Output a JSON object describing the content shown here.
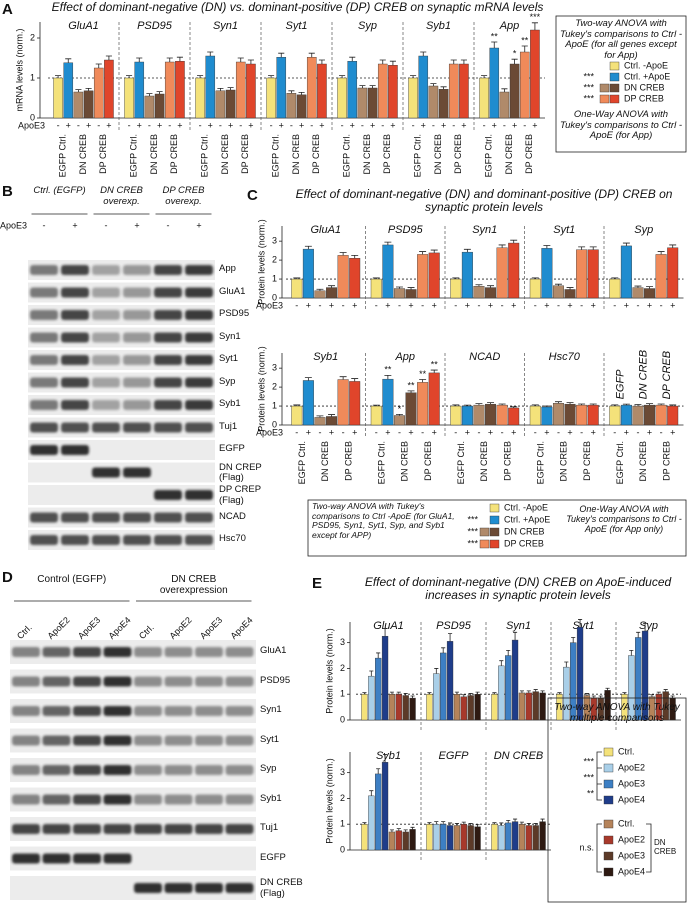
{
  "chart_data": [
    {
      "type": "bar",
      "label": "A",
      "title": "Effect of dominant-negative (DN) vs. dominant-positive (DP) CREB on synaptic mRNA levels",
      "ylabel": "mRNA levels (norm.)",
      "ylim": [
        0,
        2.4
      ],
      "yticks": [
        0,
        1,
        2
      ],
      "refline": 1,
      "sign_label": "ApoE3",
      "signs": [
        "-",
        "+"
      ],
      "pair_labels": [
        "EGFP Ctrl.",
        "DN CREB",
        "DP CREB"
      ],
      "legend": [
        {
          "label": "Ctrl. -ApoE",
          "colors": [
            "#f4e27a"
          ]
        },
        {
          "label": "Ctrl. +ApoE",
          "colors": [
            "#1f8ccf"
          ]
        },
        {
          "label": "DN CREB",
          "colors": [
            "#b08a6a",
            "#6b4a35"
          ]
        },
        {
          "label": "DP CREB",
          "colors": [
            "#f08a5a",
            "#e0452b"
          ]
        }
      ],
      "legend_stars": [
        null,
        "***",
        "***",
        "***"
      ],
      "legend_notes": [
        "Two-way ANOVA with Tukey's comparisons to Ctrl -ApoE (for all genes except for App)",
        "One-Way ANOVA with Tukey's comparisons to Ctrl -ApoE (for App)"
      ],
      "rows": [
        {
          "categories": [
            "GluA1",
            "PSD95",
            "Syn1",
            "Syt1",
            "Syp",
            "Syb1",
            "App"
          ],
          "values": [
            [
              1.0,
              1.38,
              0.65,
              0.68,
              1.25,
              1.45
            ],
            [
              1.0,
              1.4,
              0.55,
              0.6,
              1.4,
              1.42
            ],
            [
              1.0,
              1.55,
              0.68,
              0.7,
              1.4,
              1.35
            ],
            [
              1.0,
              1.52,
              0.62,
              0.58,
              1.52,
              1.35
            ],
            [
              1.0,
              1.42,
              0.75,
              0.75,
              1.35,
              1.32
            ],
            [
              1.0,
              1.55,
              0.8,
              0.72,
              1.35,
              1.35
            ],
            [
              1.0,
              1.75,
              0.65,
              1.35,
              1.65,
              2.2
            ]
          ],
          "errors": [
            [
              0.06,
              0.1,
              0.06,
              0.06,
              0.1,
              0.1
            ],
            [
              0.06,
              0.1,
              0.06,
              0.06,
              0.1,
              0.1
            ],
            [
              0.06,
              0.1,
              0.06,
              0.06,
              0.1,
              0.1
            ],
            [
              0.06,
              0.1,
              0.06,
              0.06,
              0.1,
              0.1
            ],
            [
              0.06,
              0.1,
              0.06,
              0.06,
              0.1,
              0.1
            ],
            [
              0.06,
              0.1,
              0.06,
              0.06,
              0.1,
              0.1
            ],
            [
              0.06,
              0.15,
              0.08,
              0.12,
              0.15,
              0.18
            ]
          ],
          "stars": [
            null,
            null,
            null,
            null,
            null,
            null,
            [
              null,
              "**",
              null,
              "*",
              "**",
              "***"
            ]
          ]
        }
      ]
    },
    {
      "type": "bar",
      "label": "C",
      "title": "Effect of dominant-negative (DN) and dominant-positive (DP) CREB on synaptic protein levels",
      "ylabel": "Protein levels (norm.)",
      "ylim": [
        0,
        3.8
      ],
      "yticks": [
        0,
        1,
        2,
        3
      ],
      "refline": 1,
      "sign_label": "ApoE3",
      "signs": [
        "-",
        "+"
      ],
      "pair_labels": [
        "EGFP Ctrl.",
        "DN CREB",
        "DP CREB"
      ],
      "legend": [
        {
          "label": "Ctrl. -ApoE",
          "colors": [
            "#f4e27a"
          ]
        },
        {
          "label": "Ctrl. +ApoE",
          "colors": [
            "#1f8ccf"
          ]
        },
        {
          "label": "DN CREB",
          "colors": [
            "#b08a6a",
            "#6b4a35"
          ]
        },
        {
          "label": "DP CREB",
          "colors": [
            "#f08a5a",
            "#e0452b"
          ]
        }
      ],
      "legend_stars": [
        null,
        "***",
        "***",
        "***"
      ],
      "legend_notes": [
        "Two-way ANOVA with Tukey's comparisons to Ctrl -ApoE (for GluA1, PSD95, Syn1, Syt1, Syp, and Syb1 except for APP)",
        "One-Way ANOVA with Tukey's comparisons to Ctrl -ApoE (for App only)"
      ],
      "rows": [
        {
          "categories": [
            "GluA1",
            "PSD95",
            "Syn1",
            "Syt1",
            "Syp"
          ],
          "values": [
            [
              1.0,
              2.58,
              0.38,
              0.55,
              2.25,
              2.1
            ],
            [
              1.0,
              2.8,
              0.5,
              0.45,
              2.3,
              2.38
            ],
            [
              1.0,
              2.42,
              0.62,
              0.55,
              2.65,
              2.9
            ],
            [
              1.0,
              2.62,
              0.65,
              0.45,
              2.55,
              2.55
            ],
            [
              1.0,
              2.75,
              0.55,
              0.5,
              2.3,
              2.65
            ]
          ],
          "errors": [
            [
              0.06,
              0.15,
              0.08,
              0.1,
              0.15,
              0.15
            ],
            [
              0.06,
              0.15,
              0.08,
              0.1,
              0.15,
              0.15
            ],
            [
              0.06,
              0.15,
              0.08,
              0.1,
              0.15,
              0.15
            ],
            [
              0.06,
              0.15,
              0.08,
              0.1,
              0.15,
              0.15
            ],
            [
              0.06,
              0.15,
              0.08,
              0.1,
              0.15,
              0.15
            ]
          ]
        },
        {
          "categories": [
            "Syb1",
            "App",
            "NCAD",
            "Hsc70",
            null
          ],
          "sub_labels": [
            "EGFP",
            "DN CREB",
            "DP CREB"
          ],
          "values": [
            [
              1.0,
              2.35,
              0.4,
              0.45,
              2.4,
              2.3
            ],
            [
              1.0,
              2.42,
              0.5,
              1.7,
              2.25,
              2.75
            ],
            [
              1.0,
              1.0,
              1.05,
              1.1,
              1.05,
              0.9
            ],
            [
              1.0,
              0.95,
              1.15,
              1.1,
              1.05,
              1.05
            ],
            [
              1.0,
              1.05,
              1.0,
              1.05,
              1.05,
              1.0
            ]
          ],
          "errors": [
            [
              0.06,
              0.15,
              0.08,
              0.1,
              0.15,
              0.15
            ],
            [
              0.05,
              0.2,
              0.06,
              0.1,
              0.15,
              0.15
            ],
            [
              0.06,
              0.05,
              0.08,
              0.08,
              0.06,
              0.06
            ],
            [
              0.06,
              0.05,
              0.08,
              0.08,
              0.06,
              0.06
            ],
            [
              0.06,
              0.05,
              0.08,
              0.08,
              0.06,
              0.06
            ]
          ],
          "stars": [
            null,
            [
              null,
              "**",
              "*",
              "**",
              "**",
              "**"
            ],
            null,
            null,
            null
          ]
        }
      ]
    },
    {
      "type": "bar",
      "label": "E",
      "title": "Effect of dominant-negative (DN) CREB on ApoE-induced increases in synaptic protein levels",
      "ylabel": "Protein levels (norm.)",
      "ylim": [
        0,
        3.8
      ],
      "yticks": [
        0,
        1,
        2,
        3
      ],
      "refline": 1,
      "legend": [
        {
          "label": "Ctrl.",
          "colors": [
            "#f4e27a"
          ]
        },
        {
          "label": "ApoE2",
          "colors": [
            "#a9cfe8"
          ]
        },
        {
          "label": "ApoE3",
          "colors": [
            "#3d7fc4"
          ]
        },
        {
          "label": "ApoE4",
          "colors": [
            "#1f3d8a"
          ]
        },
        {
          "label": "Ctrl.",
          "colors": [
            "#b5835a"
          ]
        },
        {
          "label": "ApoE2",
          "colors": [
            "#a8392b"
          ]
        },
        {
          "label": "ApoE3",
          "colors": [
            "#5c3a28"
          ]
        },
        {
          "label": "ApoE4",
          "colors": [
            "#2e1a12"
          ]
        }
      ],
      "legend_title": "Two-way ANOVA with Tukey multiple comparisons",
      "legend_stars": [
        "***",
        "***",
        "**"
      ],
      "legend_ns": "n.s.",
      "legend_group": "DN CREB",
      "rows": [
        {
          "categories": [
            "GluA1",
            "PSD95",
            "Syn1",
            "Syt1",
            "Syp"
          ],
          "values": [
            [
              1.0,
              1.7,
              2.4,
              3.25,
              1.0,
              1.0,
              0.95,
              0.85
            ],
            [
              1.0,
              1.8,
              2.6,
              3.05,
              1.0,
              0.9,
              0.95,
              1.0
            ],
            [
              1.0,
              2.1,
              2.5,
              3.1,
              1.05,
              1.05,
              1.1,
              1.05
            ],
            [
              1.0,
              2.05,
              3.0,
              3.6,
              0.95,
              0.85,
              0.85,
              1.15
            ],
            [
              1.0,
              2.5,
              3.2,
              3.45,
              0.9,
              1.0,
              1.1,
              0.85
            ]
          ],
          "errors": [
            [
              0.06,
              0.2,
              0.2,
              0.3,
              0.08,
              0.08,
              0.08,
              0.08
            ],
            [
              0.06,
              0.2,
              0.2,
              0.3,
              0.08,
              0.08,
              0.08,
              0.08
            ],
            [
              0.06,
              0.2,
              0.2,
              0.3,
              0.08,
              0.08,
              0.08,
              0.08
            ],
            [
              0.06,
              0.2,
              0.2,
              0.3,
              0.08,
              0.08,
              0.08,
              0.08
            ],
            [
              0.06,
              0.2,
              0.2,
              0.3,
              0.08,
              0.08,
              0.08,
              0.08
            ]
          ]
        },
        {
          "categories": [
            "Syb1",
            "EGFP",
            "DN CREB"
          ],
          "values": [
            [
              1.0,
              2.1,
              2.95,
              3.4,
              0.7,
              0.75,
              0.7,
              0.8
            ],
            [
              1.0,
              1.0,
              1.0,
              0.95,
              0.95,
              1.0,
              0.95,
              0.9
            ],
            [
              1.0,
              0.95,
              1.05,
              1.1,
              1.0,
              0.95,
              0.95,
              1.1
            ]
          ],
          "errors": [
            [
              0.06,
              0.2,
              0.2,
              0.3,
              0.08,
              0.08,
              0.08,
              0.08
            ],
            [
              0.06,
              0.1,
              0.1,
              0.1,
              0.08,
              0.08,
              0.08,
              0.08
            ],
            [
              0.06,
              0.1,
              0.1,
              0.1,
              0.08,
              0.08,
              0.08,
              0.1
            ]
          ]
        }
      ]
    }
  ],
  "blot_b": {
    "label": "B",
    "groups": [
      "Ctrl. (EGFP)",
      "DN CREB overexp.",
      "DP CREB overexp."
    ],
    "sign_label": "ApoE3",
    "signs": [
      "-",
      "+"
    ],
    "rows": [
      "App",
      "GluA1",
      "PSD95",
      "Syn1",
      "Syt1",
      "Syp",
      "Syb1",
      "Tuj1",
      "EGFP",
      "DN CREP (Flag)",
      "DP CREP (Flag)",
      "NCAD",
      "Hsc70"
    ]
  },
  "blot_d": {
    "label": "D",
    "groups": [
      "Control (EGFP)",
      "DN CREB overexpression"
    ],
    "lanes": [
      "Ctrl.",
      "ApoE2",
      "ApoE3",
      "ApoE4"
    ],
    "rows": [
      "GluA1",
      "PSD95",
      "Syn1",
      "Syt1",
      "Syp",
      "Syb1",
      "Tuj1",
      "EGFP",
      "DN CREB (Flag)"
    ]
  }
}
